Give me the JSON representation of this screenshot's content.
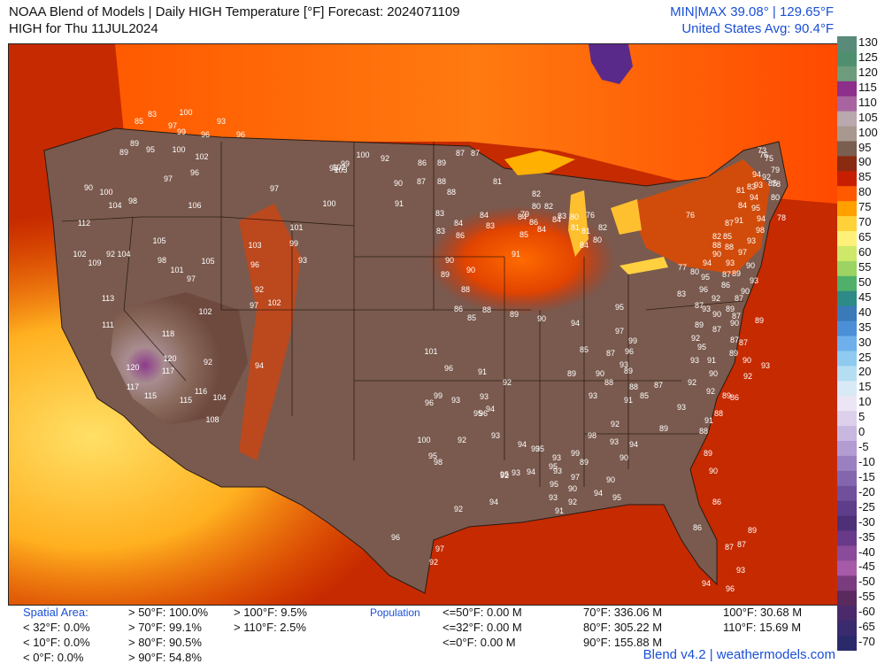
{
  "header": {
    "title_line1": "NOAA Blend of Models | Daily HIGH Temperature [°F] Forecast: 2024071109",
    "title_line2": "HIGH for Thu 11JUL2024",
    "minmax": "MIN|MAX 39.08°  |  129.65°F",
    "us_avg": "United States Avg: 90.4°F"
  },
  "colorbar": {
    "labels": [
      "130",
      "125",
      "120",
      "115",
      "110",
      "105",
      "100",
      "95",
      "90",
      "85",
      "80",
      "75",
      "70",
      "65",
      "60",
      "55",
      "50",
      "45",
      "40",
      "35",
      "30",
      "25",
      "20",
      "15",
      "10",
      "5",
      "0",
      "-5",
      "-10",
      "-15",
      "-20",
      "-25",
      "-30",
      "-35",
      "-40",
      "-45",
      "-50",
      "-55",
      "-60",
      "-65",
      "-70"
    ],
    "colors": [
      "#5a8a7a",
      "#4f8f6f",
      "#6c9c7c",
      "#8e2f8c",
      "#a864a0",
      "#b9a8ad",
      "#a89890",
      "#7a5e50",
      "#8a2a10",
      "#c81e00",
      "#ff5a00",
      "#ffa000",
      "#ffd23a",
      "#fff07a",
      "#cfe86a",
      "#9bd462",
      "#4fb06a",
      "#2e8a86",
      "#3a7ab8",
      "#4d8fd6",
      "#6fb0ec",
      "#8fcbf0",
      "#b6def2",
      "#d8eaf6",
      "#ece6f4",
      "#dcd0ec",
      "#c8b8e0",
      "#b29cd2",
      "#9a80c0",
      "#8466ae",
      "#70509c",
      "#5e3e8a",
      "#4e3078",
      "#6a3a8a",
      "#8a4c9a",
      "#a65aa8",
      "#7a3c7e",
      "#5a2a5e",
      "#4a2a6a",
      "#3a2a6e",
      "#2a2a6a"
    ]
  },
  "footer": {
    "spatial_area_label": "Spatial Area:",
    "spatial_col1": [
      "< 32°F: 0.0%",
      "< 10°F: 0.0%",
      "< 0°F: 0.0%"
    ],
    "spatial_col2": [
      "> 50°F: 100.0%",
      "> 70°F: 99.1%",
      "> 80°F: 90.5%",
      "> 90°F: 54.8%"
    ],
    "spatial_col3": [
      "> 100°F: 9.5%",
      "> 110°F: 2.5%"
    ],
    "population_label": "Population",
    "pop_col1": [
      "<=50°F: 0.00 M",
      "<=32°F: 0.00 M",
      "<=0°F: 0.00 M"
    ],
    "pop_col2": [
      "70°F: 336.06 M",
      "80°F: 305.22 M",
      "90°F: 155.88 M"
    ],
    "pop_col3": [
      "100°F: 30.68 M",
      "110°F: 15.69 M"
    ],
    "credit": "Blend v4.2 | weathermodels.com"
  },
  "map": {
    "stations": [
      {
        "t": "100"
      },
      {
        "t": "93"
      },
      {
        "t": "97"
      },
      {
        "t": "99"
      },
      {
        "t": "96"
      },
      {
        "t": "96"
      },
      {
        "t": "83"
      },
      {
        "t": "85"
      },
      {
        "t": "89"
      },
      {
        "t": "95"
      },
      {
        "t": "89"
      },
      {
        "t": "100"
      },
      {
        "t": "102"
      },
      {
        "t": "97"
      },
      {
        "t": "96"
      },
      {
        "t": "90"
      },
      {
        "t": "100"
      },
      {
        "t": "104"
      },
      {
        "t": "98"
      },
      {
        "t": "106"
      },
      {
        "t": "112"
      },
      {
        "t": "102"
      },
      {
        "t": "109"
      },
      {
        "t": "92"
      },
      {
        "t": "104"
      },
      {
        "t": "105"
      },
      {
        "t": "98"
      },
      {
        "t": "101"
      },
      {
        "t": "105"
      },
      {
        "t": "97"
      },
      {
        "t": "113"
      },
      {
        "t": "111"
      },
      {
        "t": "102"
      },
      {
        "t": "118"
      },
      {
        "t": "120"
      },
      {
        "t": "117"
      },
      {
        "t": "120"
      },
      {
        "t": "117"
      },
      {
        "t": "115"
      },
      {
        "t": "115"
      },
      {
        "t": "116"
      },
      {
        "t": "104"
      },
      {
        "t": "108"
      },
      {
        "t": "92"
      },
      {
        "t": "94"
      },
      {
        "t": "97"
      },
      {
        "t": "96"
      },
      {
        "t": "92"
      },
      {
        "t": "103"
      },
      {
        "t": "102"
      },
      {
        "t": "101"
      },
      {
        "t": "99"
      },
      {
        "t": "93"
      },
      {
        "t": "97"
      },
      {
        "t": "100"
      },
      {
        "t": "102"
      },
      {
        "t": "103"
      },
      {
        "t": "99"
      },
      {
        "t": "100"
      },
      {
        "t": "95"
      },
      {
        "t": "92"
      },
      {
        "t": "86"
      },
      {
        "t": "89"
      },
      {
        "t": "87"
      },
      {
        "t": "87"
      },
      {
        "t": "90"
      },
      {
        "t": "87"
      },
      {
        "t": "88"
      },
      {
        "t": "91"
      },
      {
        "t": "88"
      },
      {
        "t": "83"
      },
      {
        "t": "84"
      },
      {
        "t": "86"
      },
      {
        "t": "84"
      },
      {
        "t": "83"
      },
      {
        "t": "84"
      },
      {
        "t": "85"
      },
      {
        "t": "86"
      },
      {
        "t": "84"
      },
      {
        "t": "83"
      },
      {
        "t": "81"
      },
      {
        "t": "82"
      },
      {
        "t": "80"
      },
      {
        "t": "82"
      },
      {
        "t": "79"
      },
      {
        "t": "80"
      },
      {
        "t": "81"
      },
      {
        "t": "76"
      },
      {
        "t": "83"
      },
      {
        "t": "84"
      },
      {
        "t": "81"
      },
      {
        "t": "82"
      },
      {
        "t": "80"
      },
      {
        "t": "84"
      },
      {
        "t": "91"
      },
      {
        "t": "90"
      },
      {
        "t": "89"
      },
      {
        "t": "90"
      },
      {
        "t": "88"
      },
      {
        "t": "86"
      },
      {
        "t": "85"
      },
      {
        "t": "88"
      },
      {
        "t": "89"
      },
      {
        "t": "90"
      },
      {
        "t": "94"
      },
      {
        "t": "95"
      },
      {
        "t": "97"
      },
      {
        "t": "99"
      },
      {
        "t": "96"
      },
      {
        "t": "93"
      },
      {
        "t": "89"
      },
      {
        "t": "85"
      },
      {
        "t": "87"
      },
      {
        "t": "89"
      },
      {
        "t": "90"
      },
      {
        "t": "88"
      },
      {
        "t": "101"
      },
      {
        "t": "96"
      },
      {
        "t": "91"
      },
      {
        "t": "92"
      },
      {
        "t": "93"
      },
      {
        "t": "96"
      },
      {
        "t": "99"
      },
      {
        "t": "96"
      },
      {
        "t": "93"
      },
      {
        "t": "95"
      },
      {
        "t": "94"
      },
      {
        "t": "92"
      },
      {
        "t": "100"
      },
      {
        "t": "95"
      },
      {
        "t": "93"
      },
      {
        "t": "94"
      },
      {
        "t": "98"
      },
      {
        "t": "93"
      },
      {
        "t": "95"
      },
      {
        "t": "95"
      },
      {
        "t": "93"
      },
      {
        "t": "92"
      },
      {
        "t": "94"
      },
      {
        "t": "92"
      },
      {
        "t": "93"
      },
      {
        "t": "89"
      },
      {
        "t": "97"
      },
      {
        "t": "94"
      },
      {
        "t": "95"
      },
      {
        "t": "99"
      },
      {
        "t": "98"
      },
      {
        "t": "93"
      },
      {
        "t": "94"
      },
      {
        "t": "90"
      },
      {
        "t": "89"
      },
      {
        "t": "92"
      },
      {
        "t": "96"
      },
      {
        "t": "95"
      },
      {
        "t": "97"
      },
      {
        "t": "92"
      },
      {
        "t": "93"
      },
      {
        "t": "90"
      },
      {
        "t": "90"
      },
      {
        "t": "93"
      },
      {
        "t": "91"
      },
      {
        "t": "92"
      },
      {
        "t": "94"
      },
      {
        "t": "95"
      },
      {
        "t": "93"
      },
      {
        "t": "91"
      },
      {
        "t": "88"
      },
      {
        "t": "85"
      },
      {
        "t": "87"
      },
      {
        "t": "93"
      },
      {
        "t": "92"
      },
      {
        "t": "93"
      },
      {
        "t": "95"
      },
      {
        "t": "92"
      },
      {
        "t": "89"
      },
      {
        "t": "87"
      },
      {
        "t": "90"
      },
      {
        "t": "89"
      },
      {
        "t": "87"
      },
      {
        "t": "86"
      },
      {
        "t": "93"
      },
      {
        "t": "88"
      },
      {
        "t": "90"
      },
      {
        "t": "94"
      },
      {
        "t": "95"
      },
      {
        "t": "96"
      },
      {
        "t": "92"
      },
      {
        "t": "93"
      },
      {
        "t": "87"
      },
      {
        "t": "89"
      },
      {
        "t": "87"
      },
      {
        "t": "90"
      },
      {
        "t": "76"
      },
      {
        "t": "73"
      },
      {
        "t": "75"
      },
      {
        "t": "79"
      },
      {
        "t": "78"
      },
      {
        "t": "83"
      },
      {
        "t": "81"
      },
      {
        "t": "84"
      },
      {
        "t": "91"
      },
      {
        "t": "87"
      },
      {
        "t": "85"
      },
      {
        "t": "82"
      },
      {
        "t": "88"
      },
      {
        "t": "76"
      },
      {
        "t": "77"
      },
      {
        "t": "80"
      },
      {
        "t": "83"
      },
      {
        "t": "87"
      },
      {
        "t": "91"
      },
      {
        "t": "90"
      },
      {
        "t": "89"
      },
      {
        "t": "86"
      },
      {
        "t": "88"
      },
      {
        "t": "92"
      },
      {
        "t": "91"
      },
      {
        "t": "88"
      },
      {
        "t": "89"
      },
      {
        "t": "90"
      },
      {
        "t": "86"
      },
      {
        "t": "87"
      },
      {
        "t": "89"
      },
      {
        "t": "87"
      },
      {
        "t": "86"
      },
      {
        "t": "93"
      },
      {
        "t": "94"
      },
      {
        "t": "96"
      },
      {
        "t": "93"
      },
      {
        "t": "92"
      },
      {
        "t": "90"
      },
      {
        "t": "89"
      },
      {
        "t": "87"
      },
      {
        "t": "87"
      },
      {
        "t": "89"
      },
      {
        "t": "90"
      },
      {
        "t": "93"
      },
      {
        "t": "90"
      },
      {
        "t": "97"
      },
      {
        "t": "93"
      },
      {
        "t": "98"
      },
      {
        "t": "94"
      },
      {
        "t": "95"
      },
      {
        "t": "94"
      },
      {
        "t": "93"
      },
      {
        "t": "94"
      },
      {
        "t": "92"
      },
      {
        "t": "85"
      },
      {
        "t": "80"
      },
      {
        "t": "78"
      }
    ]
  }
}
